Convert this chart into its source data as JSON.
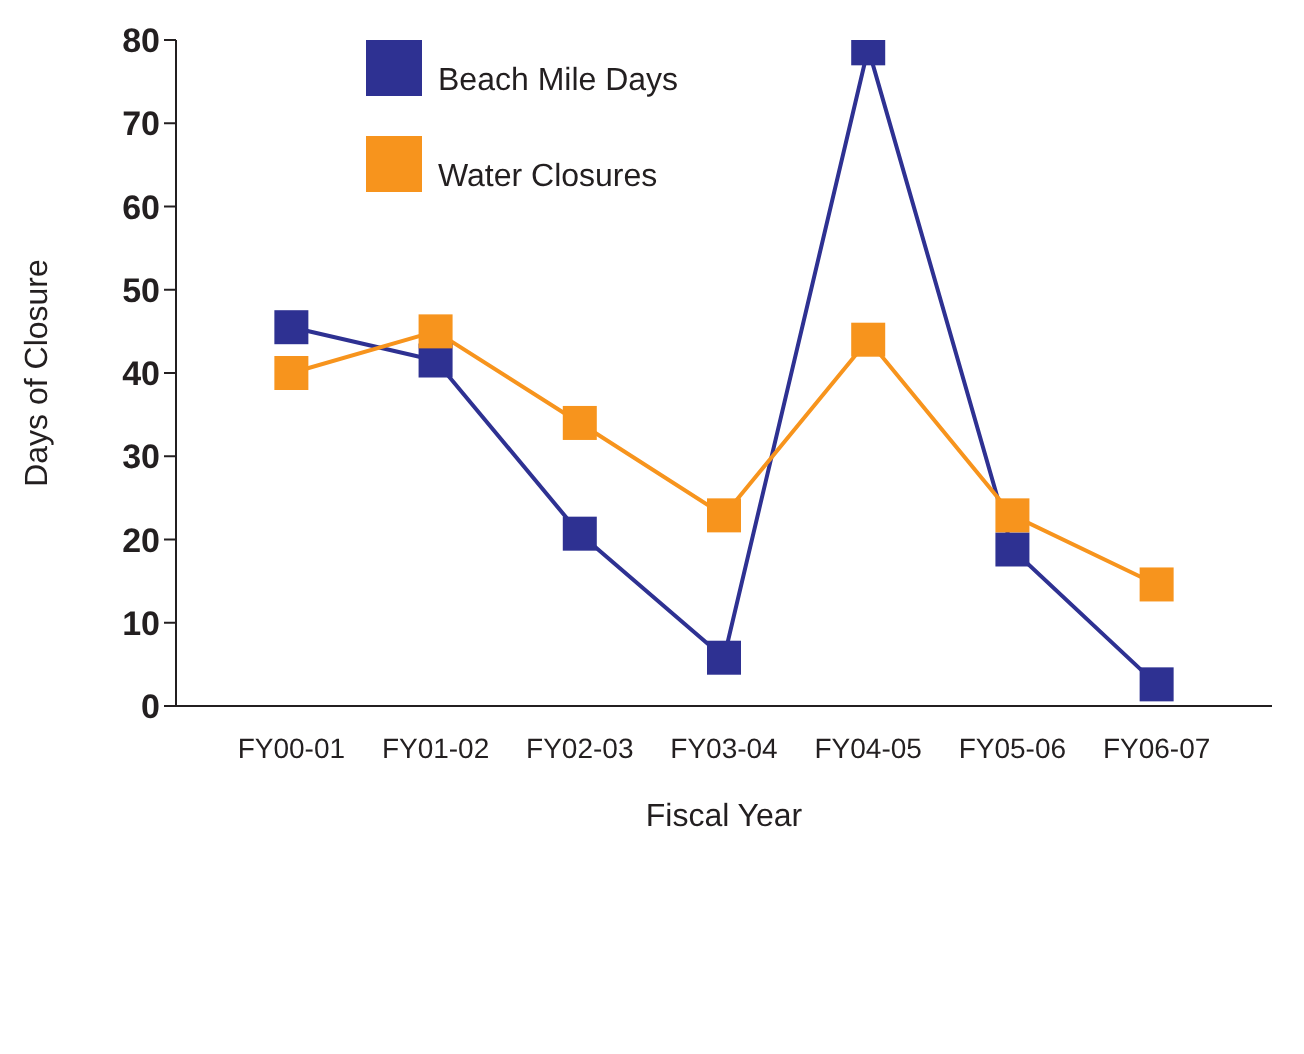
{
  "chart_data": {
    "type": "line",
    "xlabel": "Fiscal Year",
    "ylabel": "Days of Closure",
    "categories": [
      "FY00-01",
      "FY01-02",
      "FY02-03",
      "FY03-04",
      "FY04-05",
      "FY05-06",
      "FY06-07"
    ],
    "series": [
      {
        "name": "Beach Mile Days",
        "color": "#2e3192",
        "values": [
          45.5,
          41.5,
          20.7,
          5.8,
          79,
          18.8,
          2.6
        ]
      },
      {
        "name": "Water Closures",
        "color": "#f7941d",
        "values": [
          40,
          45,
          34,
          22.9,
          44,
          22.9,
          14.6
        ]
      }
    ],
    "ylim": [
      0,
      80
    ],
    "yticks": [
      0,
      10,
      20,
      30,
      40,
      50,
      60,
      70,
      80
    ],
    "grid": false,
    "legend": "top left",
    "marker": "square",
    "line_style": "solid"
  }
}
